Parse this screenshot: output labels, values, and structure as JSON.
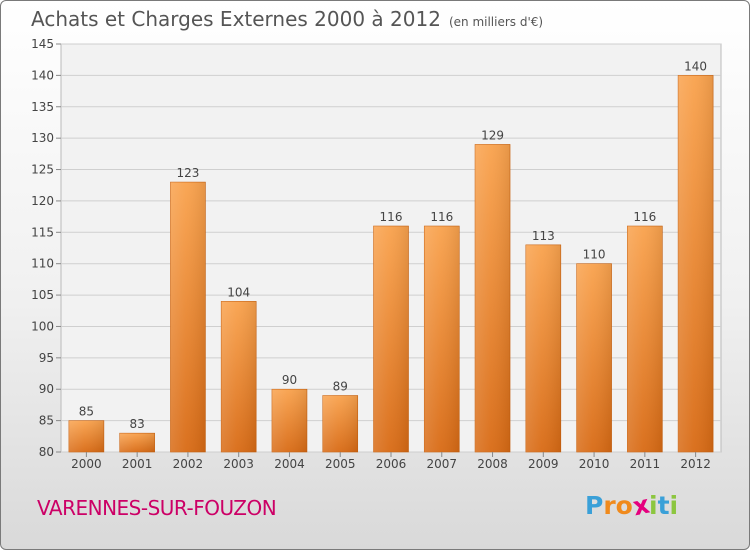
{
  "title": "Achats et Charges Externes 2000 à 2012",
  "unit": "(en milliers d'€)",
  "town": "VARENNES-SUR-FOUZON",
  "logo": {
    "letters": [
      "P",
      "r",
      "o",
      "x",
      "i",
      "t",
      "i"
    ],
    "colors": [
      "#3aa0d8",
      "#f08a1c",
      "#f08a1c",
      "#e5007e",
      "#8cc63f",
      "#3aa0d8",
      "#8cc63f"
    ]
  },
  "colors": {
    "bar_light": "#f9a24d",
    "bar_dark": "#d86a14",
    "title": "#555555",
    "town": "#cc0066"
  },
  "chart_data": {
    "type": "bar",
    "categories": [
      "2000",
      "2001",
      "2002",
      "2003",
      "2004",
      "2005",
      "2006",
      "2007",
      "2008",
      "2009",
      "2010",
      "2011",
      "2012"
    ],
    "values": [
      85,
      83,
      123,
      104,
      90,
      89,
      116,
      116,
      129,
      113,
      110,
      116,
      140
    ],
    "title": "Achats et Charges Externes 2000 à 2012",
    "xlabel": "",
    "ylabel": "",
    "ylim": [
      80,
      145
    ],
    "yticks": [
      80,
      85,
      90,
      95,
      100,
      105,
      110,
      115,
      120,
      125,
      130,
      135,
      140,
      145
    ],
    "grid": true,
    "data_labels": true
  }
}
